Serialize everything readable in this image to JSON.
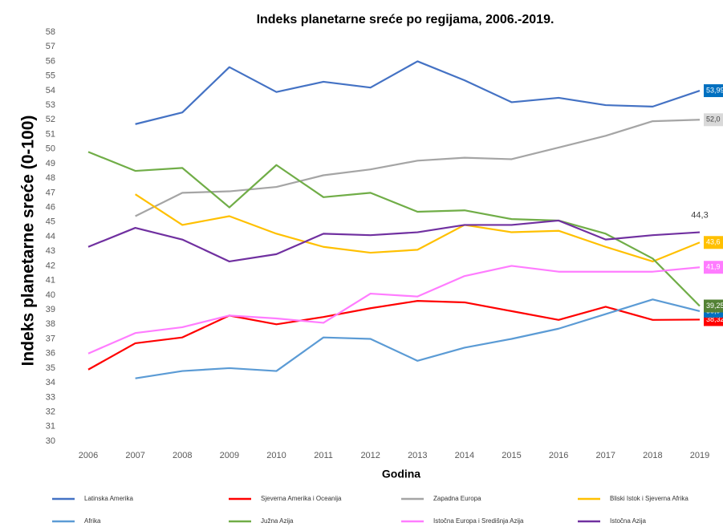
{
  "chart_data": {
    "type": "line",
    "title": "Indeks planetarne sreće po regijama, 2006.-2019.",
    "x_label": "Godina",
    "y_label": "Indeks planetarne sreće (0-100)",
    "categories": [
      "2006",
      "2007",
      "2008",
      "2009",
      "2010",
      "2011",
      "2012",
      "2013",
      "2014",
      "2015",
      "2016",
      "2017",
      "2018",
      "2019"
    ],
    "ylim": [
      30,
      58
    ],
    "yticks": [
      30,
      31,
      32,
      33,
      34,
      35,
      36,
      37,
      38,
      39,
      40,
      41,
      42,
      43,
      44,
      45,
      46,
      47,
      48,
      49,
      50,
      51,
      52,
      53,
      54,
      55,
      56,
      57,
      58
    ],
    "series": [
      {
        "name": "Latinska Amerika",
        "color": "#4472c4",
        "label_bg": "#0070c0",
        "label_color": "#ffffff",
        "values": [
          null,
          51.7,
          52.5,
          55.6,
          53.9,
          54.6,
          54.2,
          56.0,
          54.7,
          53.2,
          53.5,
          53.0,
          52.9,
          53.99
        ],
        "value_labels": [
          null,
          null,
          null,
          null,
          null,
          null,
          null,
          null,
          null,
          null,
          null,
          null,
          null,
          "53,99"
        ]
      },
      {
        "name": "Sjeverna Amerika i Oceanija",
        "color": "#ff0000",
        "label_bg": "#ff0000",
        "label_color": "#ffffff",
        "values": [
          34.9,
          36.7,
          37.1,
          38.6,
          38.0,
          38.5,
          39.1,
          39.6,
          39.5,
          38.9,
          38.3,
          39.2,
          38.3,
          38.32
        ],
        "value_labels": [
          null,
          null,
          null,
          null,
          null,
          null,
          null,
          null,
          null,
          null,
          null,
          null,
          null,
          "38,32"
        ]
      },
      {
        "name": "Zapadna Europa",
        "color": "#a5a5a5",
        "label_bg": "#d9d9d9",
        "label_color": "#404040",
        "values": [
          null,
          45.4,
          47.0,
          47.1,
          47.4,
          48.2,
          48.6,
          49.2,
          49.4,
          49.3,
          50.1,
          50.9,
          51.9,
          52.0
        ],
        "value_labels": [
          null,
          null,
          null,
          null,
          null,
          null,
          null,
          null,
          null,
          null,
          null,
          null,
          null,
          "52,0"
        ]
      },
      {
        "name": "Bliski Istok i Sjeverna Afrika",
        "color": "#ffc000",
        "label_bg": "#ffc000",
        "label_color": "#ffffff",
        "values": [
          null,
          46.9,
          44.8,
          45.4,
          44.2,
          43.3,
          42.9,
          43.1,
          44.8,
          44.3,
          44.4,
          43.3,
          42.3,
          43.6
        ],
        "value_labels": [
          null,
          null,
          null,
          null,
          null,
          null,
          null,
          null,
          null,
          null,
          null,
          null,
          null,
          "43,6"
        ]
      },
      {
        "name": "Afrika",
        "color": "#5b9bd5",
        "label_bg": "#0070c0",
        "label_color": "#ffffff",
        "values": [
          null,
          34.3,
          34.8,
          35.0,
          34.8,
          37.1,
          37.0,
          35.5,
          36.4,
          37.0,
          37.7,
          38.7,
          39.7,
          38.9
        ],
        "value_labels": [
          null,
          null,
          null,
          null,
          null,
          null,
          null,
          null,
          null,
          null,
          null,
          null,
          null,
          "38,9"
        ]
      },
      {
        "name": "Južna Azija",
        "color": "#70ad47",
        "label_bg": "#548235",
        "label_color": "#ffffff",
        "values": [
          49.8,
          48.5,
          48.7,
          46.0,
          48.9,
          46.7,
          47.0,
          45.7,
          45.8,
          45.2,
          45.1,
          44.2,
          42.5,
          39.25
        ],
        "value_labels": [
          null,
          null,
          null,
          null,
          null,
          null,
          null,
          null,
          null,
          null,
          null,
          null,
          null,
          "39,25"
        ]
      },
      {
        "name": "Istočna Europa i Središnja Azija",
        "color": "#ff7cff",
        "label_bg": "#ff7cff",
        "label_color": "#ffffff",
        "values": [
          36.0,
          37.4,
          37.8,
          38.6,
          38.4,
          38.1,
          40.1,
          39.9,
          41.3,
          42.0,
          41.6,
          41.6,
          41.6,
          41.9
        ],
        "value_labels": [
          null,
          null,
          null,
          null,
          null,
          null,
          null,
          null,
          null,
          null,
          null,
          null,
          null,
          "41,9"
        ]
      },
      {
        "name": "Istočna Azija",
        "color": "#7030a0",
        "label_bg": null,
        "label_color": "#404040",
        "values": [
          43.3,
          44.6,
          43.8,
          42.3,
          42.8,
          44.2,
          44.1,
          44.3,
          44.8,
          44.8,
          45.1,
          43.8,
          44.1,
          44.3
        ],
        "value_labels": [
          null,
          null,
          null,
          null,
          null,
          null,
          null,
          null,
          null,
          null,
          null,
          null,
          null,
          "44,3"
        ]
      }
    ]
  }
}
